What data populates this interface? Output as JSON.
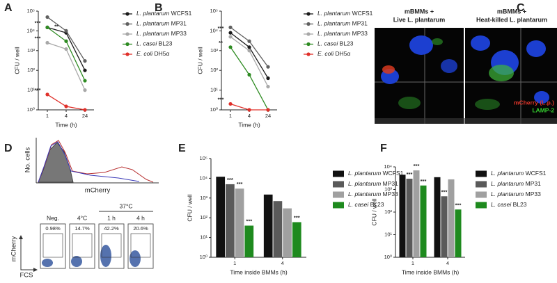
{
  "panel_labels": [
    "A",
    "B",
    "C",
    "D",
    "E",
    "F"
  ],
  "chart_data": [
    {
      "type": "line",
      "ylabel": "CFU / well",
      "xlabel": "Time (h)",
      "categories": [
        "1",
        "4",
        "24"
      ],
      "log_y": true,
      "ylim": [
        1,
        100000
      ],
      "yticks": [
        {
          "value": 1,
          "label": "10⁰"
        },
        {
          "value": 10,
          "label": "10¹"
        },
        {
          "value": 100,
          "label": "10²"
        },
        {
          "value": 1000,
          "label": "10³"
        },
        {
          "value": 10000,
          "label": "10⁴"
        },
        {
          "value": 100000,
          "label": "10⁵"
        }
      ],
      "series": [
        {
          "name": "L. plantarum WCFS1",
          "color": "#1a1a1a",
          "values": [
            15000,
            8000,
            100
          ],
          "stars": [
            "***",
            null,
            null
          ]
        },
        {
          "name": "L. plantarum MP31",
          "color": "#606060",
          "values": [
            50000,
            10000,
            300
          ],
          "stars": [
            null,
            "**",
            null
          ]
        },
        {
          "name": "L. plantarum MP33",
          "color": "#a8a8a8",
          "values": [
            2500,
            1200,
            10
          ],
          "stars": [
            "***",
            null,
            null
          ]
        },
        {
          "name": "L. casei BL23",
          "color": "#2e8b22",
          "values": [
            15000,
            3000,
            30
          ],
          "stars": [
            null,
            null,
            null
          ]
        },
        {
          "name": "E. coli DH5α",
          "color": "#e0302a",
          "values": [
            6,
            1.5,
            1
          ],
          "stars": [
            "***",
            null,
            null
          ]
        }
      ]
    },
    {
      "type": "line",
      "ylabel": "CFU / well",
      "xlabel": "Time (h)",
      "categories": [
        "1",
        "4",
        "24"
      ],
      "log_y": true,
      "ylim": [
        1,
        100000
      ],
      "yticks": [
        {
          "value": 1,
          "label": "10⁰"
        },
        {
          "value": 10,
          "label": "10¹"
        },
        {
          "value": 100,
          "label": "10²"
        },
        {
          "value": 1000,
          "label": "10³"
        },
        {
          "value": 10000,
          "label": "10⁴"
        },
        {
          "value": 100000,
          "label": "10⁵"
        }
      ],
      "series": [
        {
          "name": "L. plantarum WCFS1",
          "color": "#1a1a1a",
          "values": [
            8000,
            1500,
            40
          ],
          "stars": [
            "***",
            null,
            null
          ]
        },
        {
          "name": "L. plantarum MP31",
          "color": "#606060",
          "values": [
            15000,
            3000,
            150
          ],
          "stars": [
            null,
            null,
            null
          ]
        },
        {
          "name": "L. plantarum MP33",
          "color": "#a8a8a8",
          "values": [
            5000,
            1000,
            15
          ],
          "stars": [
            null,
            null,
            null
          ]
        },
        {
          "name": "L. casei BL23",
          "color": "#2e8b22",
          "values": [
            1500,
            60,
            1
          ],
          "stars": [
            "**",
            null,
            null
          ]
        },
        {
          "name": "E. coli DH5α",
          "color": "#e0302a",
          "values": [
            2,
            1,
            1
          ],
          "stars": [
            "***",
            null,
            null
          ]
        }
      ]
    },
    {
      "type": "bar",
      "ylabel": "CFU / well",
      "xlabel": "Time inside BMMs (h)",
      "categories": [
        "1",
        "4"
      ],
      "log_y": true,
      "ylim": [
        1,
        100000
      ],
      "yticks": [
        {
          "value": 1,
          "label": "10⁰"
        },
        {
          "value": 10,
          "label": "10¹"
        },
        {
          "value": 100,
          "label": "10²"
        },
        {
          "value": 1000,
          "label": "10³"
        },
        {
          "value": 10000,
          "label": "10⁴"
        },
        {
          "value": 100000,
          "label": "10⁵"
        }
      ],
      "series": [
        {
          "name": "L. plantarum WCFS1",
          "color": "#111111",
          "values": [
            12000,
            1500
          ],
          "stars": [
            null,
            null
          ]
        },
        {
          "name": "L. plantarum MP31",
          "color": "#5a5a5a",
          "values": [
            5000,
            700
          ],
          "stars": [
            "***",
            null
          ]
        },
        {
          "name": "L. plantarum MP33",
          "color": "#a0a0a0",
          "values": [
            3000,
            300
          ],
          "stars": [
            "***",
            null
          ]
        },
        {
          "name": "L. casei BL23",
          "color": "#1e8a1e",
          "values": [
            40,
            60
          ],
          "stars": [
            "***",
            "***"
          ]
        }
      ]
    },
    {
      "type": "bar",
      "ylabel": "CFU / well",
      "xlabel": "Time inside BMMs (h)",
      "categories": [
        "1",
        "4"
      ],
      "log_y": true,
      "ylim": [
        1,
        10000
      ],
      "yticks": [
        {
          "value": 1,
          "label": "10⁰"
        },
        {
          "value": 10,
          "label": "10¹"
        },
        {
          "value": 100,
          "label": "10²"
        },
        {
          "value": 1000,
          "label": "10³"
        },
        {
          "value": 10000,
          "label": "10⁴"
        }
      ],
      "series": [
        {
          "name": "L. plantarum WCFS1",
          "color": "#111111",
          "values": [
            4500,
            3500
          ],
          "stars": [
            null,
            null
          ]
        },
        {
          "name": "L. plantarum MP31",
          "color": "#5a5a5a",
          "values": [
            3000,
            500
          ],
          "stars": [
            "***",
            "***"
          ]
        },
        {
          "name": "L. plantarum MP33",
          "color": "#a0a0a0",
          "values": [
            7000,
            2800
          ],
          "stars": [
            "***",
            null
          ]
        },
        {
          "name": "L. casei BL23",
          "color": "#1e8a1e",
          "values": [
            1500,
            130
          ],
          "stars": [
            "***",
            "***"
          ]
        }
      ]
    }
  ],
  "micrograph": {
    "panels": [
      {
        "title": [
          "mBMMs +",
          "Live L. plantarum"
        ]
      },
      {
        "title": [
          "mBMMs +",
          "Heat-killed L. plantarum"
        ]
      }
    ],
    "legend": [
      "mCherry (L.p.)",
      "LAMP-2"
    ]
  },
  "flow": {
    "histogram_ylabel": "No. cells",
    "histogram_xlabel": "mCherry",
    "conditions": [
      "Neg.",
      "4°C",
      "1 h",
      "4 h"
    ],
    "group_label": "37°C",
    "percentages": [
      "0.98%",
      "14.7%",
      "42.2%",
      "20.6%"
    ],
    "dot_ylabel": "mCherry",
    "dot_xlabel": "FCS"
  }
}
